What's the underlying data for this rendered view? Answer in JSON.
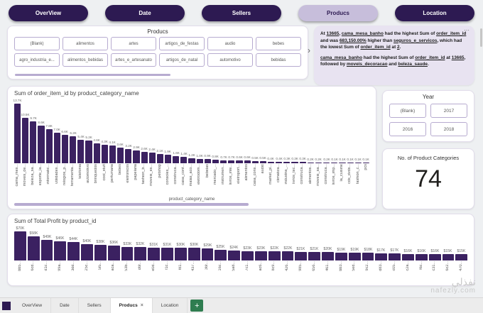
{
  "colors": {
    "accent": "#2d1a52",
    "bar": "#3b2161",
    "pill_selected": "#c7bedb",
    "insight_bg": "#e8e3f1",
    "add_button_green": "#2f7d50"
  },
  "icons": {
    "slicer_next": "›",
    "more_options": "⋯",
    "tab_close": "×",
    "add_tab": "+"
  },
  "top_nav": {
    "items": [
      {
        "label": "OverView",
        "active": false
      },
      {
        "label": "Date",
        "active": false
      },
      {
        "label": "Sellers",
        "active": false
      },
      {
        "label": "Producs",
        "active": true
      },
      {
        "label": "Location",
        "active": false
      }
    ]
  },
  "slicer": {
    "title": "Producs",
    "items": [
      "(Blank)",
      "alimentos",
      "artes",
      "artigos_de_festas",
      "audio",
      "bebes",
      "agro_industria_e...",
      "alimentos_bebidas",
      "artes_e_artesanato",
      "artigos_de_natal",
      "automotivo",
      "bebidas"
    ]
  },
  "insight": {
    "paragraphs": [
      [
        {
          "t": "At ",
          "u": false
        },
        {
          "t": "13665",
          "u": true
        },
        {
          "t": ", ",
          "u": false
        },
        {
          "t": "cama_mesa_banho",
          "u": true
        },
        {
          "t": " had the highest Sum of ",
          "u": false
        },
        {
          "t": "order_item_id",
          "u": true
        },
        {
          "t": " and was ",
          "u": false
        },
        {
          "t": "683,150.00%",
          "u": true
        },
        {
          "t": " higher than ",
          "u": false
        },
        {
          "t": "seguros_e_servicos",
          "u": true
        },
        {
          "t": ", which had the lowest Sum of ",
          "u": false
        },
        {
          "t": "order_item_id",
          "u": true
        },
        {
          "t": " at ",
          "u": false
        },
        {
          "t": "2",
          "u": true
        },
        {
          "t": ".",
          "u": false
        }
      ],
      [
        {
          "t": "cama_mesa_banho",
          "u": true
        },
        {
          "t": " had the highest Sum of ",
          "u": false
        },
        {
          "t": "order_item_id",
          "u": true
        },
        {
          "t": " at ",
          "u": false
        },
        {
          "t": "13665",
          "u": true
        },
        {
          "t": ", followed by ",
          "u": false
        },
        {
          "t": "moveis_decoracao",
          "u": true
        },
        {
          "t": " and ",
          "u": false
        },
        {
          "t": "beleza_saude",
          "u": true
        },
        {
          "t": ".",
          "u": false
        }
      ]
    ]
  },
  "year_slicer": {
    "title": "Year",
    "options": [
      "(Blank)",
      "2017",
      "2016",
      "2018"
    ]
  },
  "kpi": {
    "title": "No. of Product Categories",
    "value": "74"
  },
  "chart_data": [
    {
      "type": "bar",
      "title": "Sum of order_item_id by product_category_name",
      "xlabel": "product_category_name",
      "ylabel": "Sum of order_item_id",
      "ylim": [
        0,
        14000
      ],
      "legend": false,
      "grid": false,
      "categories": [
        "cama_mes...",
        "moveis_de...",
        "beleza_sa...",
        "esporte_la...",
        "informatic...",
        "utilidades...",
        "relogios_p...",
        "ferramenta...",
        "telefonia",
        "automotivo",
        "brinquedos",
        "cool_stuff",
        "perfumaria",
        "bebes",
        "eletronicos",
        "papelaria",
        "fashion_b...",
        "moveis_es...",
        "petshop",
        "consoles_...",
        "construca...",
        "casa_conf...",
        "malas_aco...",
        "eletrodom...",
        "bebidas",
        "mercado_...",
        "instrumen...",
        "livros_inte...",
        "eletroport...",
        "alimentos",
        "casa_cons...",
        "audio",
        "market_pl...",
        "climatiza...",
        "industria_...",
        "livros_tec...",
        "construca...",
        "alimentos...",
        "moveis_sa...",
        "construca...",
        "livros_imp...",
        "la_cuisine",
        "cds_dvds...",
        "fashion_c...",
        "pcs"
      ],
      "values": [
        13.7,
        10.5,
        9.7,
        8.6,
        7.8,
        7.0,
        6.6,
        6.2,
        5.4,
        5.2,
        4.6,
        4.3,
        4.1,
        3.6,
        3.2,
        2.9,
        2.6,
        2.4,
        2.1,
        1.9,
        1.6,
        1.4,
        1.2,
        1.0,
        0.9,
        0.8,
        0.7,
        0.7,
        0.6,
        0.6,
        0.5,
        0.5,
        0.4,
        0.4,
        0.3,
        0.3,
        0.3,
        0.2,
        0.2,
        0.2,
        0.1,
        0.1,
        0.1,
        0.1,
        0.1
      ],
      "labels": [
        "13.7K",
        "10.5K",
        "9.7K",
        "8.6K",
        "7.8K",
        "7.0K",
        "6.6K",
        "6.2K",
        "5.4K",
        "5.2K",
        "4.6K",
        "4.3K",
        "4.1K",
        "3.6K",
        "3.2K",
        "2.9K",
        "2.6K",
        "2.4K",
        "2.1K",
        "1.9K",
        "1.6K",
        "1.4K",
        "1.2K",
        "1.0K",
        "0.9K",
        "0.8K",
        "0.7K",
        "0.7K",
        "0.6K",
        "0.6K",
        "0.5K",
        "0.5K",
        "0.4K",
        "0.4K",
        "0.3K",
        "0.3K",
        "0.3K",
        "0.2K",
        "0.2K",
        "0.2K",
        "0.1K",
        "0.1K",
        "0.1K",
        "0.1K",
        "0.1K"
      ]
    },
    {
      "type": "bar",
      "title": "Sum of Total Profit by product_id",
      "xlabel": "",
      "ylabel": "Sum of Total Profit",
      "ylim": [
        0,
        70000
      ],
      "legend": false,
      "grid": false,
      "categories": [
        "bb5...",
        "6cd...",
        "d1c...",
        "99a...",
        "3dd...",
        "25c...",
        "5f5...",
        "aca...",
        "53b...",
        "d6f...",
        "e0d...",
        "f1c...",
        "f81...",
        "437...",
        "36f...",
        "16c...",
        "5a8...",
        "7c1...",
        "ac6...",
        "8c9...",
        "426...",
        "985...",
        "656...",
        "461...",
        "bb3...",
        "5ed...",
        "9c2...",
        "d83...",
        "c05...",
        "c2a...",
        "f6c...",
        "c31...",
        "6c2...",
        "470..."
      ],
      "values": [
        70,
        58,
        49,
        46,
        44,
        40,
        38,
        36,
        33,
        32,
        31,
        31,
        30,
        30,
        29,
        25,
        24,
        23,
        23,
        22,
        22,
        21,
        21,
        20,
        19,
        19,
        18,
        17,
        17,
        16,
        16,
        16,
        15,
        15
      ],
      "labels": [
        "$70K",
        "$58K",
        "$49K",
        "$46K",
        "$44K",
        "$40K",
        "$38K",
        "$36K",
        "$33K",
        "$32K",
        "$31K",
        "$31K",
        "$30K",
        "$30K",
        "$29K",
        "$25K",
        "$24K",
        "$23K",
        "$23K",
        "$22K",
        "$22K",
        "$21K",
        "$21K",
        "$20K",
        "$19K",
        "$19K",
        "$18K",
        "$17K",
        "$17K",
        "$16K",
        "$16K",
        "$16K",
        "$15K",
        "$15K"
      ]
    }
  ],
  "tab_bar": {
    "tabs": [
      {
        "label": "OverView",
        "active": false
      },
      {
        "label": "Date",
        "active": false
      },
      {
        "label": "Sellers",
        "active": false
      },
      {
        "label": "Producs",
        "active": true
      },
      {
        "label": "Location",
        "active": false
      }
    ]
  },
  "watermark": {
    "line1": "نفذلي",
    "line2": "nafezly.com"
  }
}
